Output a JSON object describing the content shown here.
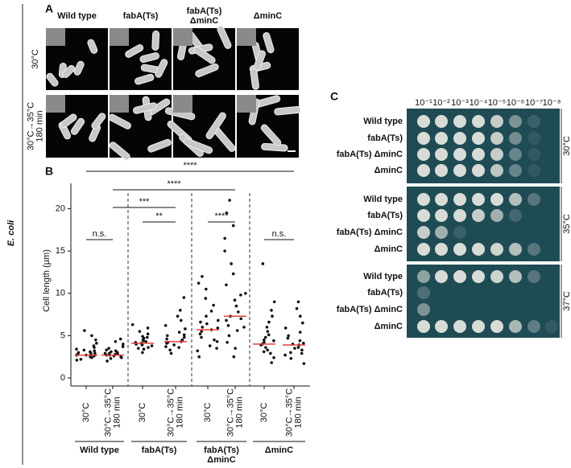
{
  "side_label": "E. coli",
  "panel_a": {
    "letter": "A",
    "columns": [
      "Wild type",
      "fabA(Ts)",
      "fabA(Ts)\nΔminC",
      "ΔminC"
    ],
    "rows": [
      "30°C",
      "30°C→35°C\n180 min"
    ]
  },
  "panel_b": {
    "letter": "B",
    "group_labels": [
      "Wild type",
      "fabA(Ts)",
      "fabA(Ts)\nΔminC",
      "ΔminC"
    ]
  },
  "chart_data": {
    "type": "strip",
    "y_label": "Cell length (µm)",
    "ylim": [
      0,
      23
    ],
    "yticks": [
      0,
      5,
      10,
      15,
      20
    ],
    "categories": [
      "30°C",
      "30°C→35°C\n180 min",
      "30°C",
      "30°C→35°C\n180 min",
      "30°C",
      "30°C→35°C\n180 min",
      "30°C",
      "30°C→35°C\n180 min"
    ],
    "points": [
      [
        2.1,
        2.4,
        2.5,
        2.6,
        2.7,
        2.7,
        2.8,
        2.9,
        3.0,
        3.1,
        3.2,
        3.4,
        3.6,
        3.8,
        4.1,
        4.5,
        5.0,
        5.6,
        2.2,
        2.9,
        2.6,
        3.3
      ],
      [
        2.0,
        2.3,
        2.5,
        2.6,
        2.7,
        2.8,
        2.8,
        2.9,
        3.0,
        3.1,
        3.3,
        3.5,
        3.7,
        4.0,
        4.3,
        4.6,
        2.4,
        2.7,
        3.2,
        2.9
      ],
      [
        3.0,
        3.4,
        3.6,
        3.8,
        3.9,
        4.0,
        4.1,
        4.2,
        4.3,
        4.5,
        4.7,
        4.9,
        5.2,
        5.5,
        5.9,
        6.3,
        3.5,
        4.4,
        4.0,
        4.8
      ],
      [
        2.9,
        3.3,
        3.6,
        3.9,
        4.1,
        4.3,
        4.5,
        4.8,
        5.1,
        5.4,
        5.8,
        6.2,
        6.8,
        7.3,
        8.0,
        9.5,
        3.7,
        4.2,
        4.6,
        5.0
      ],
      [
        2.5,
        3.2,
        3.8,
        4.3,
        4.8,
        5.2,
        5.5,
        5.7,
        6.0,
        6.4,
        6.8,
        7.3,
        7.9,
        8.6,
        9.4,
        10.5,
        11.2,
        12.0,
        4.5,
        5.9,
        6.6,
        3.5
      ],
      [
        3.5,
        4.2,
        5.0,
        5.6,
        6.2,
        6.8,
        7.3,
        7.8,
        8.5,
        9.2,
        10.0,
        11.0,
        12.3,
        13.5,
        15.0,
        16.5,
        18.0,
        19.5,
        21.0,
        6.0,
        7.0,
        9.8,
        2.5
      ],
      [
        1.8,
        2.4,
        2.9,
        3.3,
        3.6,
        3.9,
        4.0,
        4.2,
        4.5,
        4.8,
        5.1,
        5.5,
        6.0,
        6.6,
        7.3,
        8.0,
        9.0,
        13.5,
        3.1,
        4.4
      ],
      [
        1.7,
        2.3,
        2.7,
        3.0,
        3.3,
        3.6,
        3.9,
        4.1,
        4.4,
        4.7,
        5.0,
        5.4,
        5.9,
        6.5,
        7.3,
        8.2,
        9.0,
        3.5,
        4.0,
        2.9
      ]
    ],
    "medians": [
      2.7,
      2.7,
      4.1,
      4.3,
      5.7,
      7.3,
      4.0,
      3.9
    ],
    "median_color": "#e0443c",
    "point_color": "#111111",
    "comparisons": [
      {
        "from": 0,
        "to": 7,
        "label": "****"
      },
      {
        "from": 1,
        "to": 5,
        "label": "****"
      },
      {
        "from": 1,
        "to": 3,
        "label": "***"
      },
      {
        "from": 0,
        "to": 1,
        "label": "n.s."
      },
      {
        "from": 2,
        "to": 3,
        "label": "**"
      },
      {
        "from": 4,
        "to": 5,
        "label": "****"
      },
      {
        "from": 6,
        "to": 7,
        "label": "n.s."
      }
    ]
  },
  "panel_c": {
    "letter": "C",
    "dilutions": [
      "10⁻¹",
      "10⁻²",
      "10⁻³",
      "10⁻⁴",
      "10⁻⁵",
      "10⁻⁶",
      "10⁻⁷",
      "10⁻⁸"
    ],
    "plates": [
      {
        "temperature": "30°C",
        "strains": [
          "Wild type",
          "fabA(Ts)",
          "fabA(Ts) ΔminC",
          "ΔminC"
        ]
      },
      {
        "temperature": "35°C",
        "strains": [
          "Wild type",
          "fabA(Ts)",
          "fabA(Ts) ΔminC",
          "ΔminC"
        ]
      },
      {
        "temperature": "37°C",
        "strains": [
          "Wild type",
          "fabA(Ts)",
          "fabA(Ts) ΔminC",
          "ΔminC"
        ]
      }
    ]
  }
}
